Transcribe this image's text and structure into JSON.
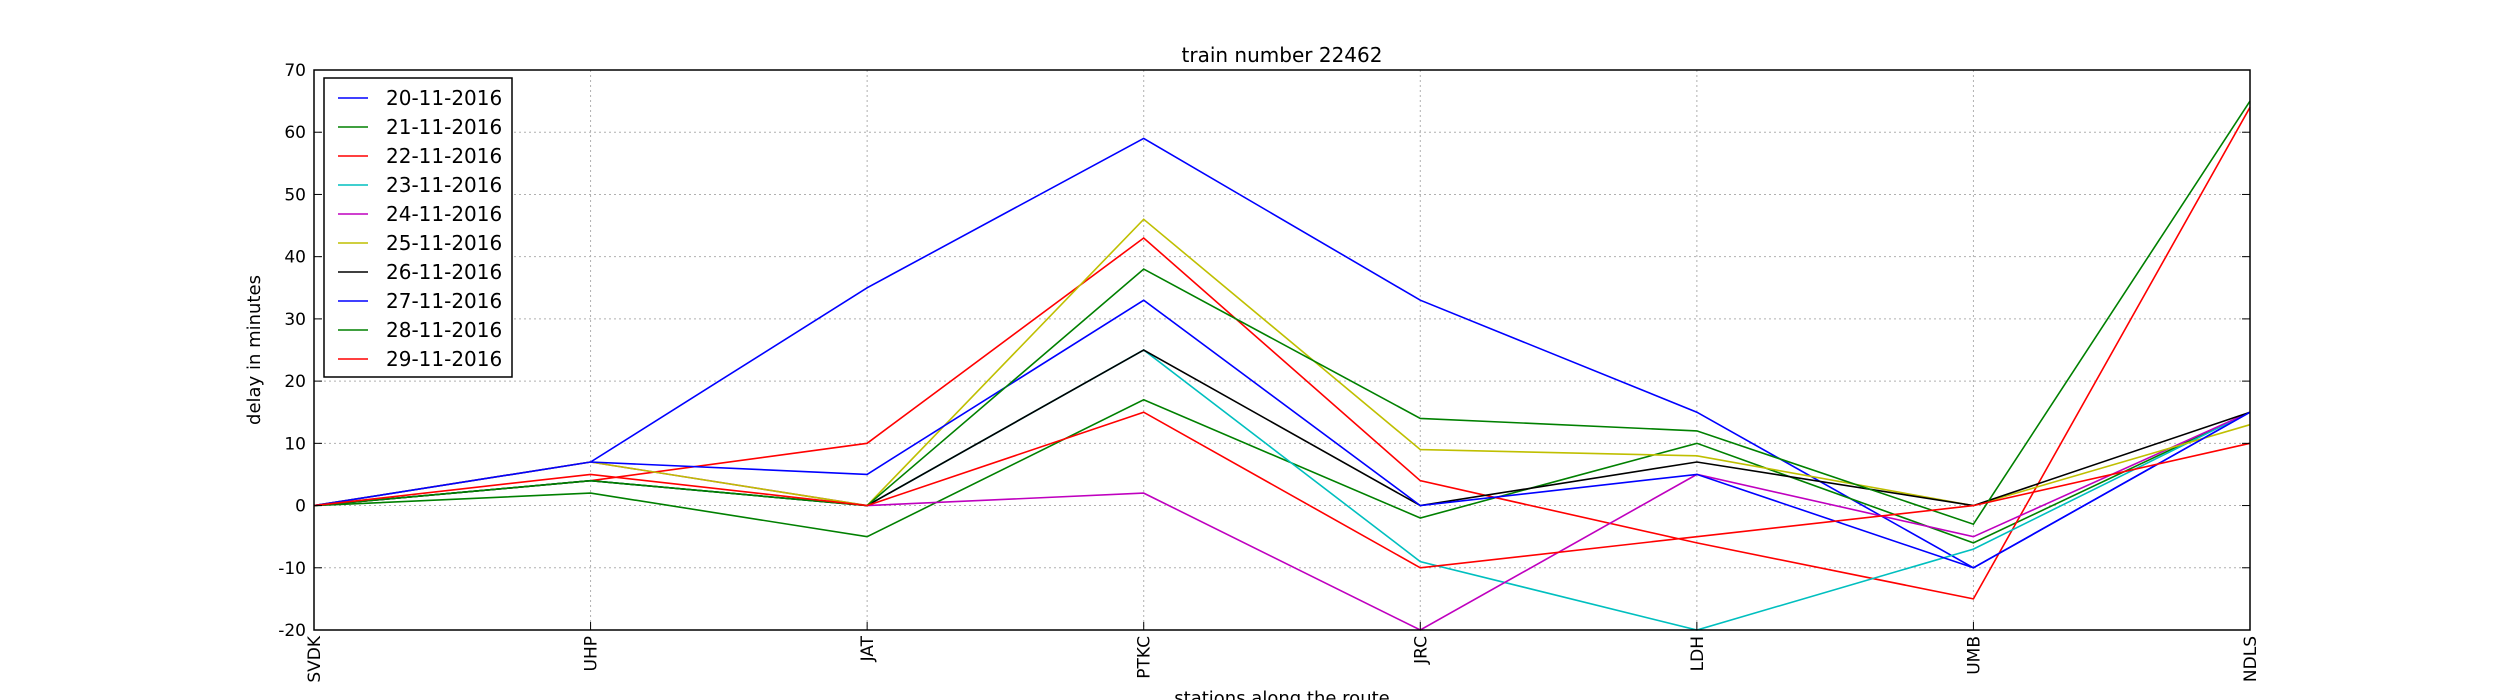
{
  "chart_data": {
    "type": "line",
    "title": "train number 22462",
    "xlabel": "stations along the route",
    "ylabel": "delay in minutes",
    "categories": [
      "SVDK",
      "UHP",
      "JAT",
      "PTKC",
      "JRC",
      "LDH",
      "UMB",
      "NDLS"
    ],
    "ylim": [
      -20,
      70
    ],
    "yticks": [
      -20,
      -10,
      0,
      10,
      20,
      30,
      40,
      50,
      60,
      70
    ],
    "grid": true,
    "legend_position": "upper-left",
    "series": [
      {
        "name": "20-11-2016",
        "color": "#0000ff",
        "values": [
          0,
          7,
          35,
          59,
          33,
          15,
          -10,
          15
        ]
      },
      {
        "name": "21-11-2016",
        "color": "#008000",
        "values": [
          0,
          2,
          -5,
          17,
          -2,
          10,
          -6,
          15
        ]
      },
      {
        "name": "22-11-2016",
        "color": "#ff0000",
        "values": [
          0,
          4,
          10,
          43,
          4,
          -6,
          -15,
          64
        ]
      },
      {
        "name": "23-11-2016",
        "color": "#00bfbf",
        "values": [
          0,
          4,
          0,
          25,
          -9,
          -20,
          -7,
          15
        ]
      },
      {
        "name": "24-11-2016",
        "color": "#bf00bf",
        "values": [
          0,
          7,
          0,
          2,
          -20,
          5,
          -5,
          15
        ]
      },
      {
        "name": "25-11-2016",
        "color": "#bfbf00",
        "values": [
          0,
          7,
          0,
          46,
          9,
          8,
          0,
          13
        ]
      },
      {
        "name": "26-11-2016",
        "color": "#000000",
        "values": [
          0,
          4,
          0,
          25,
          0,
          7,
          0,
          15
        ]
      },
      {
        "name": "27-11-2016",
        "color": "#0000ff",
        "values": [
          0,
          7,
          5,
          33,
          0,
          5,
          -10,
          15
        ]
      },
      {
        "name": "28-11-2016",
        "color": "#008000",
        "values": [
          0,
          4,
          0,
          38,
          14,
          12,
          -3,
          65
        ]
      },
      {
        "name": "29-11-2016",
        "color": "#ff0000",
        "values": [
          0,
          5,
          0,
          15,
          -10,
          -5,
          0,
          10
        ]
      }
    ]
  }
}
